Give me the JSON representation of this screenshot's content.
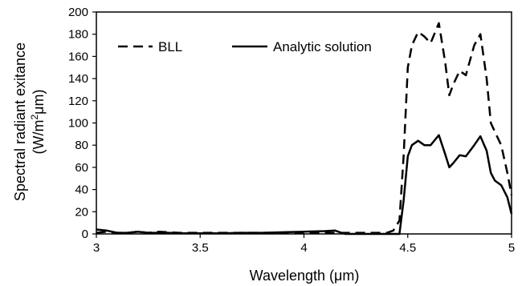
{
  "chart_data": {
    "type": "line",
    "xlabel": "Wavelength (μm)",
    "ylabel_line1": "Spectral radiant exitance",
    "ylabel_line2_prefix": "(W/m",
    "ylabel_line2_sup": "2",
    "ylabel_line2_suffix": "μm)",
    "xlim": [
      3,
      5
    ],
    "ylim": [
      0,
      200
    ],
    "xticks": [
      3,
      3.5,
      4,
      4.5,
      5
    ],
    "xtick_labels": [
      "3",
      "3.5",
      "4",
      "4.5",
      "5"
    ],
    "yticks": [
      0,
      20,
      40,
      60,
      80,
      100,
      120,
      140,
      160,
      180,
      200
    ],
    "ytick_labels": [
      "0",
      "20",
      "40",
      "60",
      "80",
      "100",
      "120",
      "140",
      "160",
      "180",
      "200"
    ],
    "grid": false,
    "legend_position": "top-left",
    "series": [
      {
        "name": "BLL",
        "style": "dashed",
        "color": "#000000",
        "x": [
          3.0,
          3.05,
          3.1,
          3.15,
          3.2,
          3.25,
          3.3,
          3.4,
          3.5,
          3.6,
          3.8,
          4.0,
          4.1,
          4.2,
          4.3,
          4.4,
          4.43,
          4.46,
          4.48,
          4.5,
          4.52,
          4.55,
          4.58,
          4.61,
          4.65,
          4.68,
          4.7,
          4.72,
          4.75,
          4.78,
          4.82,
          4.85,
          4.88,
          4.9,
          4.92,
          4.95,
          4.98,
          5.0
        ],
        "y": [
          1,
          2,
          1,
          1,
          2,
          1,
          2,
          1,
          1,
          1,
          1,
          1,
          1,
          1,
          1,
          1,
          3,
          12,
          70,
          150,
          170,
          182,
          178,
          172,
          190,
          155,
          125,
          135,
          147,
          143,
          170,
          180,
          140,
          100,
          92,
          80,
          55,
          35
        ]
      },
      {
        "name": "Analytic solution",
        "style": "solid",
        "color": "#000000",
        "x": [
          3.0,
          3.05,
          3.1,
          3.15,
          3.2,
          3.25,
          3.3,
          3.35,
          3.4,
          3.5,
          3.6,
          3.7,
          3.8,
          3.9,
          4.0,
          4.1,
          4.15,
          4.18,
          4.2,
          4.3,
          4.4,
          4.46,
          4.48,
          4.5,
          4.52,
          4.55,
          4.58,
          4.61,
          4.65,
          4.68,
          4.7,
          4.72,
          4.75,
          4.78,
          4.82,
          4.85,
          4.88,
          4.9,
          4.92,
          4.95,
          4.98,
          5.0
        ],
        "y": [
          4,
          3,
          1,
          1,
          2,
          1,
          1,
          1,
          0.5,
          0.5,
          0.5,
          1,
          1,
          1.5,
          2,
          2.5,
          3,
          1,
          0,
          0,
          0,
          0,
          30,
          70,
          80,
          84,
          80,
          80,
          89,
          72,
          60,
          64,
          71,
          70,
          80,
          88,
          75,
          55,
          48,
          44,
          33,
          18
        ]
      }
    ]
  }
}
